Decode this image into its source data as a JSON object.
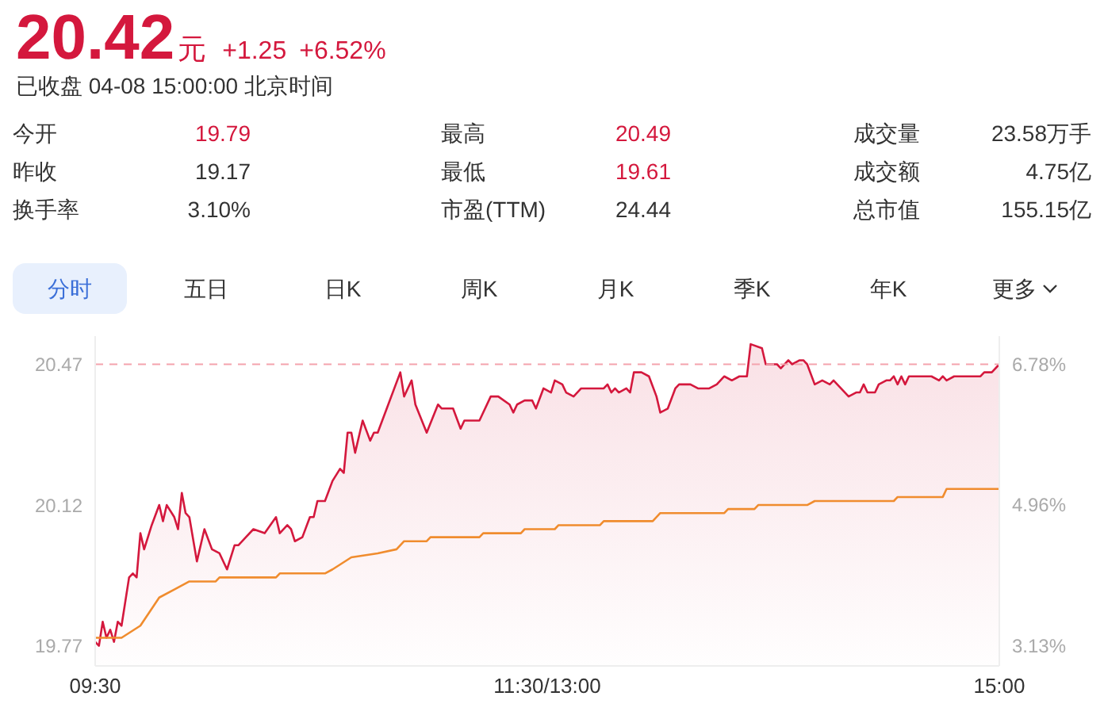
{
  "chart_data": {
    "type": "line",
    "title": "20.42",
    "subtitle": "已收盘 04-08 15:00:00 北京时间",
    "annotations": [
      "元",
      "+1.25",
      "+6.52%",
      "今开",
      "19.79",
      "最高",
      "20.49",
      "成交量",
      "23.58万手",
      "昨收",
      "19.17",
      "最低",
      "19.61",
      "成交额",
      "4.75亿",
      "换手率",
      "3.10%",
      "市盈(TTM)",
      "24.44",
      "总市值",
      "155.15亿",
      "分时",
      "五日",
      "日K",
      "周K",
      "月K",
      "季K",
      "年K",
      "更多"
    ],
    "categories": [
      "09:30",
      null,
      null,
      null,
      null,
      null,
      null,
      null,
      null,
      null,
      null,
      null,
      null,
      null,
      null,
      null,
      null,
      null,
      null,
      null,
      null,
      null,
      null,
      null,
      null,
      null,
      null,
      null,
      null,
      null,
      null,
      null,
      null,
      null,
      null,
      null,
      null,
      null,
      null,
      null,
      null,
      null,
      null,
      null,
      null,
      null,
      null,
      null,
      null,
      null,
      null,
      null,
      null,
      null,
      null,
      null,
      null,
      null,
      null,
      null,
      null,
      null,
      null,
      null,
      null,
      null,
      null,
      null,
      null,
      null,
      null,
      null,
      null,
      null,
      null,
      null,
      null,
      null,
      null,
      null,
      null,
      null,
      null,
      null,
      null,
      null,
      null,
      null,
      null,
      null,
      null,
      null,
      null,
      null,
      null,
      null,
      null,
      null,
      null,
      null,
      null,
      null,
      null,
      null,
      null,
      null,
      null,
      null,
      null,
      null,
      null,
      null,
      null,
      null,
      null,
      null,
      null,
      null,
      null,
      null,
      "11:30/13:00",
      null,
      null,
      null,
      null,
      null,
      null,
      null,
      null,
      null,
      null,
      null,
      null,
      null,
      null,
      null,
      null,
      null,
      null,
      null,
      null,
      null,
      null,
      null,
      null,
      null,
      null,
      null,
      null,
      null,
      null,
      null,
      null,
      null,
      null,
      null,
      null,
      null,
      null,
      null,
      null,
      null,
      null,
      null,
      null,
      null,
      null,
      null,
      null,
      null,
      null,
      null,
      null,
      null,
      null,
      null,
      null,
      null,
      null,
      null,
      null,
      null,
      null,
      null,
      null,
      null,
      null,
      null,
      null,
      null,
      null,
      null,
      null,
      null,
      null,
      null,
      null,
      null,
      null,
      null,
      null,
      null,
      null,
      null,
      null,
      null,
      null,
      null,
      null,
      null,
      null,
      null,
      null,
      null,
      null,
      null,
      null,
      null,
      null,
      null,
      null,
      null,
      null,
      null,
      null,
      null,
      null,
      null,
      null,
      null,
      null,
      null,
      null,
      null,
      null,
      null,
      null,
      null,
      null,
      null,
      "15:00"
    ],
    "ylim": [
      19.72,
      20.54
    ],
    "yticks": [
      19.77,
      20.12,
      20.47
    ],
    "y2lim": [
      2.87,
      7.15
    ],
    "y2ticks": [
      {
        "value": 3.13,
        "label": "3.13%"
      },
      {
        "value": 4.96,
        "label": "4.96%"
      },
      {
        "value": 6.78,
        "label": "6.78%"
      }
    ],
    "grid": false,
    "legend": false,
    "ref_lines": [
      {
        "axis": "y",
        "value": 20.47,
        "color": "#f4a3ad",
        "line_style": "dashed"
      }
    ],
    "series": [
      {
        "type": "area",
        "color": "#d4183d",
        "values": [
          19.78,
          19.77,
          19.83,
          19.79,
          19.81,
          19.78,
          19.83,
          19.82,
          null,
          19.94,
          19.95,
          19.94,
          20.05,
          20.01,
          null,
          20.07,
          null,
          20.12,
          20.08,
          20.12,
          null,
          20.09,
          20.06,
          20.15,
          20.1,
          20.09,
          null,
          19.98,
          null,
          20.06,
          null,
          20.01,
          null,
          20.0,
          null,
          19.96,
          null,
          20.02,
          20.02,
          null,
          20.04,
          null,
          20.06,
          null,
          null,
          20.05,
          null,
          null,
          20.09,
          20.05,
          null,
          20.07,
          20.06,
          20.03,
          null,
          20.04,
          null,
          20.09,
          20.09,
          20.13,
          null,
          20.13,
          null,
          20.18,
          null,
          20.21,
          20.2,
          20.3,
          20.3,
          20.25,
          null,
          20.33,
          null,
          20.28,
          20.3,
          20.3,
          null,
          null,
          null,
          null,
          null,
          20.45,
          20.39,
          null,
          20.43,
          20.37,
          null,
          null,
          20.3,
          null,
          null,
          20.37,
          20.36,
          null,
          null,
          20.36,
          null,
          20.31,
          20.33,
          null,
          null,
          20.33,
          20.33,
          null,
          null,
          20.39,
          null,
          20.39,
          null,
          null,
          20.37,
          20.35,
          20.37,
          null,
          20.38,
          null,
          20.38,
          20.36,
          null,
          20.41,
          null,
          20.4,
          20.43,
          null,
          20.42,
          20.4,
          null,
          20.39,
          null,
          20.41,
          null,
          null,
          null,
          null,
          null,
          20.41,
          20.42,
          20.4,
          20.41,
          20.4,
          null,
          20.41,
          20.4,
          20.45,
          null,
          20.45,
          null,
          20.44,
          null,
          20.39,
          20.35,
          null,
          20.36,
          null,
          20.41,
          20.42,
          null,
          null,
          20.42,
          null,
          20.41,
          null,
          null,
          20.41,
          null,
          20.42,
          null,
          20.44,
          null,
          20.43,
          null,
          20.44,
          null,
          20.44,
          20.52,
          null,
          null,
          20.51,
          20.47,
          null,
          null,
          20.47,
          20.46,
          null,
          20.48,
          20.47,
          null,
          20.48,
          20.48,
          20.47,
          null,
          20.42,
          null,
          20.43,
          null,
          20.42,
          20.43,
          null,
          null,
          null,
          20.39,
          null,
          20.4,
          20.4,
          20.42,
          20.4,
          null,
          20.4,
          20.42,
          null,
          20.43,
          20.43,
          20.44,
          20.42,
          20.44,
          20.42,
          20.44,
          null,
          null,
          null,
          null,
          null,
          20.44,
          null,
          20.43,
          20.44,
          20.43,
          null,
          20.44,
          null,
          null,
          null,
          null,
          20.44,
          null,
          20.44,
          20.45,
          20.45,
          20.45,
          null,
          20.47
        ]
      },
      {
        "type": "line",
        "color": "#f08c2e",
        "values": [
          19.79,
          null,
          null,
          null,
          null,
          null,
          null,
          19.79,
          null,
          null,
          null,
          null,
          19.82,
          null,
          null,
          null,
          null,
          19.89,
          null,
          null,
          null,
          19.91,
          null,
          null,
          null,
          19.93,
          null,
          null,
          null,
          null,
          null,
          null,
          19.93,
          19.94,
          null,
          null,
          null,
          null,
          null,
          null,
          null,
          null,
          null,
          null,
          null,
          null,
          null,
          null,
          19.94,
          19.95,
          null,
          null,
          null,
          null,
          null,
          null,
          null,
          null,
          null,
          null,
          null,
          19.95,
          null,
          19.96,
          null,
          null,
          null,
          null,
          19.99,
          null,
          null,
          null,
          null,
          null,
          null,
          20.0,
          null,
          null,
          null,
          null,
          20.01,
          null,
          20.03,
          null,
          null,
          null,
          null,
          null,
          20.03,
          20.04,
          null,
          null,
          null,
          null,
          null,
          null,
          null,
          null,
          null,
          null,
          null,
          null,
          20.04,
          20.05,
          null,
          null,
          null,
          null,
          null,
          null,
          null,
          null,
          null,
          20.05,
          20.06,
          null,
          null,
          null,
          null,
          null,
          null,
          null,
          20.06,
          20.07,
          null,
          null,
          null,
          null,
          null,
          null,
          null,
          null,
          null,
          null,
          20.07,
          20.08,
          null,
          null,
          null,
          null,
          null,
          null,
          null,
          null,
          null,
          null,
          null,
          null,
          20.08,
          null,
          20.1,
          null,
          null,
          null,
          null,
          null,
          null,
          null,
          null,
          null,
          null,
          null,
          null,
          null,
          null,
          null,
          null,
          20.1,
          20.11,
          null,
          null,
          null,
          null,
          null,
          null,
          20.11,
          20.12,
          null,
          null,
          null,
          null,
          null,
          null,
          null,
          null,
          null,
          null,
          null,
          null,
          20.12,
          null,
          20.13,
          null,
          null,
          null,
          null,
          null,
          null,
          null,
          null,
          null,
          null,
          null,
          null,
          null,
          null,
          null,
          null,
          null,
          null,
          null,
          null,
          20.13,
          20.14,
          null,
          null,
          null,
          null,
          null,
          null,
          null,
          null,
          null,
          null,
          null,
          20.14,
          20.16,
          null,
          null,
          null,
          null,
          null,
          null,
          null,
          null,
          null,
          null,
          null,
          null,
          null,
          20.16
        ]
      }
    ]
  }
}
